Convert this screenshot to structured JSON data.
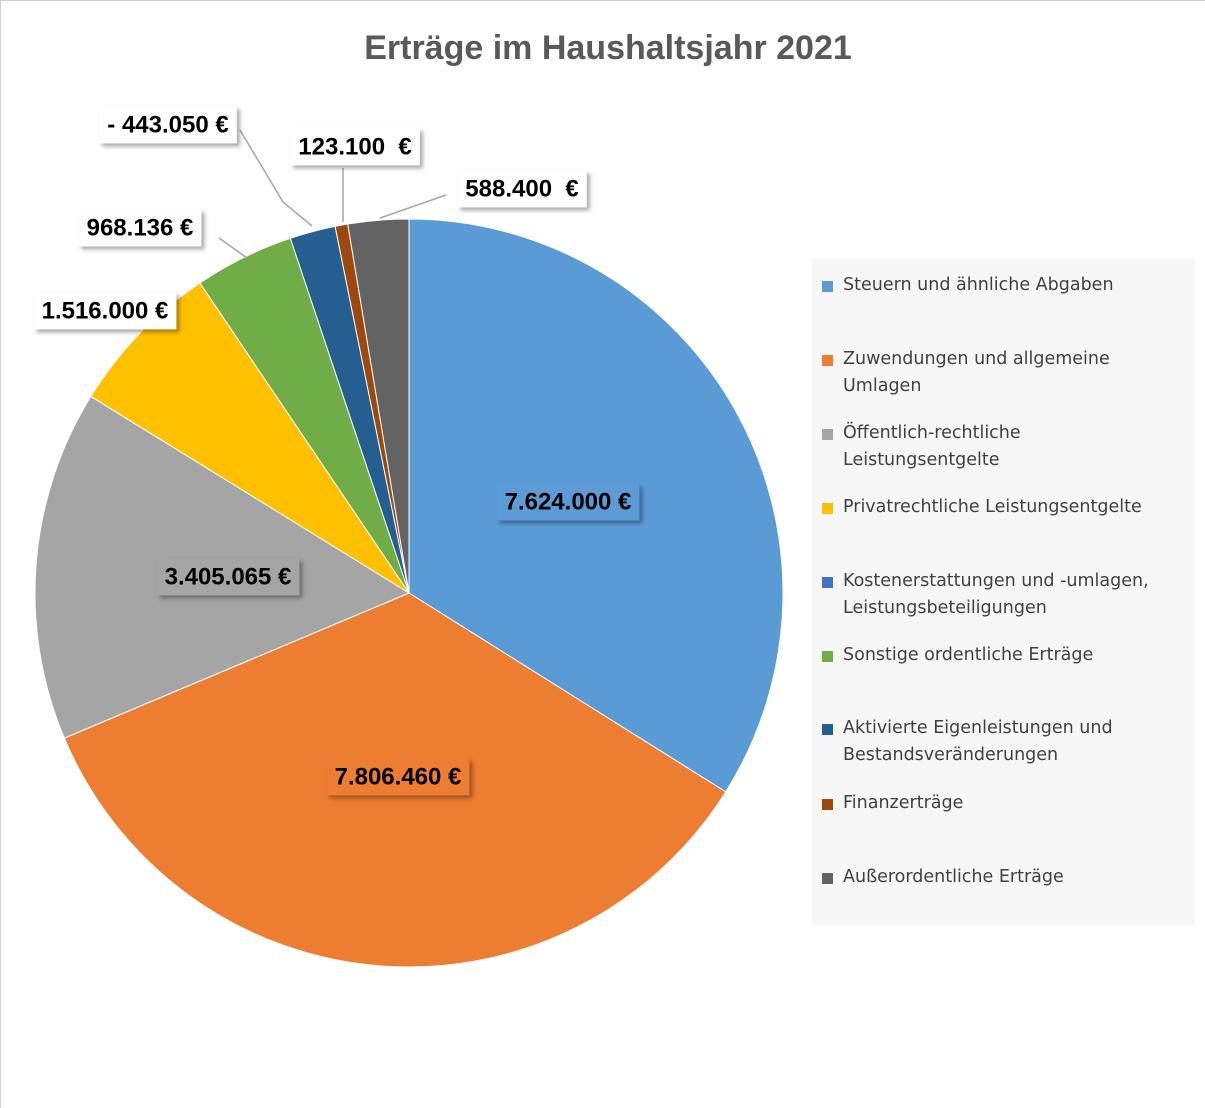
{
  "chart_data": {
    "type": "pie",
    "title": "Erträge im Haushaltsjahr 2021",
    "categories": [
      "Steuern und ähnliche Abgaben",
      "Zuwendungen und allgemeine Umlagen",
      "Öffentlich-rechtliche Leistungsentgelte",
      "Privatrechtliche Leistungsentgelte",
      "Kostenerstattungen und -umlagen, Leistungsbeteiligungen",
      "Sonstige ordentliche Erträge",
      "Aktivierte Eigenleistungen und Bestandsveränderungen",
      "Finanzerträge",
      "Außerordentliche Erträge"
    ],
    "values": [
      7624000,
      7806460,
      3405065,
      1516000,
      null,
      968136,
      -443050,
      123100,
      588400
    ],
    "value_labels": [
      "7.624.000 €",
      "7.806.460 €",
      "3.405.065 €",
      "1.516.000 €",
      null,
      "968.136 €",
      "- 443.050 €",
      "123.100  €",
      "588.400  €"
    ],
    "colors": [
      "#5b9bd5",
      "#ed7d31",
      "#a5a5a5",
      "#ffc000",
      "#4472c4",
      "#70ad47",
      "#255e91",
      "#9e480e",
      "#636363"
    ],
    "legend": "right"
  }
}
